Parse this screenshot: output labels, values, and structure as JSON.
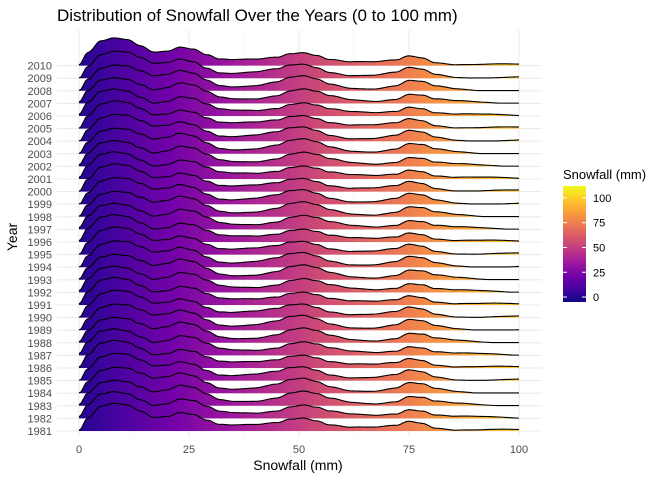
{
  "chart_data": {
    "type": "ridgeline",
    "title": "Distribution of Snowfall Over the Years (0 to 100 mm)",
    "xlabel": "Snowfall (mm)",
    "ylabel": "Year",
    "xlim": [
      0,
      100
    ],
    "x_ticks": [
      "0",
      "25",
      "50",
      "75",
      "100"
    ],
    "x_tick_values": [
      0,
      25,
      50,
      75,
      100
    ],
    "years": [
      "1981",
      "1982",
      "1983",
      "1984",
      "1985",
      "1986",
      "1987",
      "1988",
      "1989",
      "1990",
      "1991",
      "1992",
      "1993",
      "1994",
      "1995",
      "1996",
      "1997",
      "1998",
      "1999",
      "2000",
      "2001",
      "2002",
      "2003",
      "2004",
      "2005",
      "2006",
      "2007",
      "2008",
      "2009",
      "2010"
    ],
    "density_shape": {
      "x": [
        0,
        2,
        5,
        8,
        11,
        14,
        17,
        20,
        23,
        26,
        29,
        32,
        35,
        40,
        45,
        48,
        51,
        54,
        57,
        62,
        67,
        72,
        75,
        78,
        81,
        86,
        92,
        100
      ],
      "relative_density": [
        0.02,
        0.45,
        0.85,
        0.95,
        0.9,
        0.7,
        0.5,
        0.55,
        0.7,
        0.62,
        0.4,
        0.22,
        0.18,
        0.2,
        0.3,
        0.45,
        0.5,
        0.4,
        0.24,
        0.12,
        0.1,
        0.18,
        0.35,
        0.3,
        0.14,
        0.06,
        0.03,
        0.02
      ]
    },
    "fill_scale": "plasma",
    "grid": true,
    "legend": {
      "title": "Snowfall (mm)",
      "labels": [
        "0",
        "25",
        "50",
        "75",
        "100"
      ],
      "values": [
        0,
        25,
        50,
        75,
        100
      ],
      "range": [
        -5,
        112
      ],
      "placement": "right"
    }
  }
}
